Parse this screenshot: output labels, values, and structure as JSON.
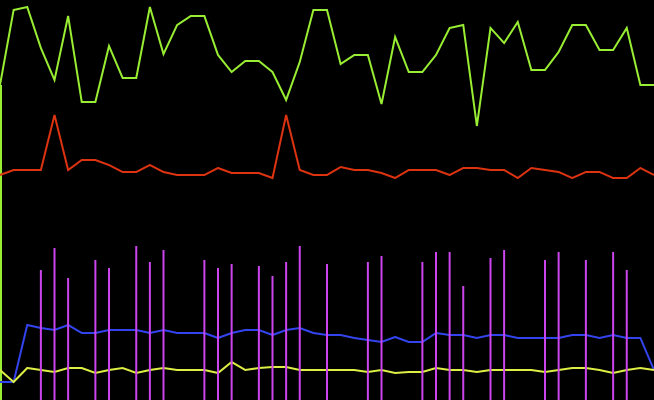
{
  "chart_data": {
    "type": "line",
    "xlim": [
      0,
      48
    ],
    "ylim": [
      0,
      400
    ],
    "y_inverted": true,
    "x": [
      0,
      1,
      2,
      3,
      4,
      5,
      6,
      7,
      8,
      9,
      10,
      11,
      12,
      13,
      14,
      15,
      16,
      17,
      18,
      19,
      20,
      21,
      22,
      23,
      24,
      25,
      26,
      27,
      28,
      29,
      30,
      31,
      32,
      33,
      34,
      35,
      36,
      37,
      38,
      39,
      40,
      41,
      42,
      43,
      44,
      45,
      46,
      47,
      48
    ],
    "series": [
      {
        "color": "#99ee33",
        "values": [
          85,
          10,
          7,
          48,
          80,
          16,
          102,
          102,
          46,
          78,
          78,
          7,
          54,
          25,
          16,
          16,
          55,
          72,
          61,
          61,
          72,
          100,
          62,
          10,
          10,
          64,
          55,
          55,
          104,
          37,
          72,
          72,
          55,
          28,
          25,
          126,
          28,
          43,
          22,
          70,
          70,
          52,
          25,
          25,
          50,
          50,
          28,
          85,
          85
        ]
      },
      {
        "color": "#dd3311",
        "values": [
          175,
          170,
          170,
          170,
          115,
          170,
          160,
          160,
          165,
          172,
          172,
          165,
          172,
          175,
          175,
          175,
          168,
          173,
          173,
          173,
          178,
          115,
          170,
          175,
          175,
          167,
          170,
          170,
          173,
          178,
          170,
          170,
          170,
          175,
          168,
          168,
          170,
          170,
          178,
          168,
          170,
          172,
          178,
          172,
          172,
          178,
          178,
          168,
          175
        ]
      },
      {
        "color": "#3344ee",
        "values": [
          382,
          382,
          325,
          328,
          330,
          325,
          333,
          333,
          330,
          330,
          330,
          333,
          330,
          333,
          333,
          333,
          338,
          333,
          330,
          330,
          335,
          330,
          328,
          333,
          335,
          335,
          338,
          340,
          342,
          337,
          342,
          342,
          333,
          335,
          335,
          338,
          335,
          335,
          338,
          338,
          338,
          338,
          335,
          335,
          338,
          335,
          338,
          338,
          370
        ]
      },
      {
        "color": "#ddee44",
        "values": [
          370,
          382,
          368,
          370,
          372,
          368,
          368,
          373,
          370,
          368,
          373,
          370,
          368,
          370,
          370,
          370,
          373,
          362,
          370,
          368,
          367,
          367,
          370,
          370,
          370,
          370,
          370,
          372,
          370,
          373,
          372,
          372,
          368,
          370,
          370,
          372,
          370,
          370,
          370,
          370,
          372,
          370,
          368,
          368,
          370,
          373,
          370,
          368,
          370
        ]
      },
      {
        "type": "bar",
        "color": "#cc44ee",
        "x": [
          3,
          4,
          5,
          7,
          8,
          10,
          11,
          12,
          15,
          16,
          17,
          19,
          20,
          21,
          22,
          24,
          27,
          28,
          31,
          32,
          33,
          34,
          36,
          37,
          40,
          41,
          43,
          45,
          46
        ],
        "values": [
          270,
          248,
          278,
          260,
          268,
          246,
          262,
          250,
          260,
          268,
          264,
          266,
          276,
          262,
          246,
          264,
          262,
          256,
          262,
          252,
          252,
          286,
          258,
          250,
          260,
          252,
          260,
          252,
          270
        ]
      }
    ]
  }
}
